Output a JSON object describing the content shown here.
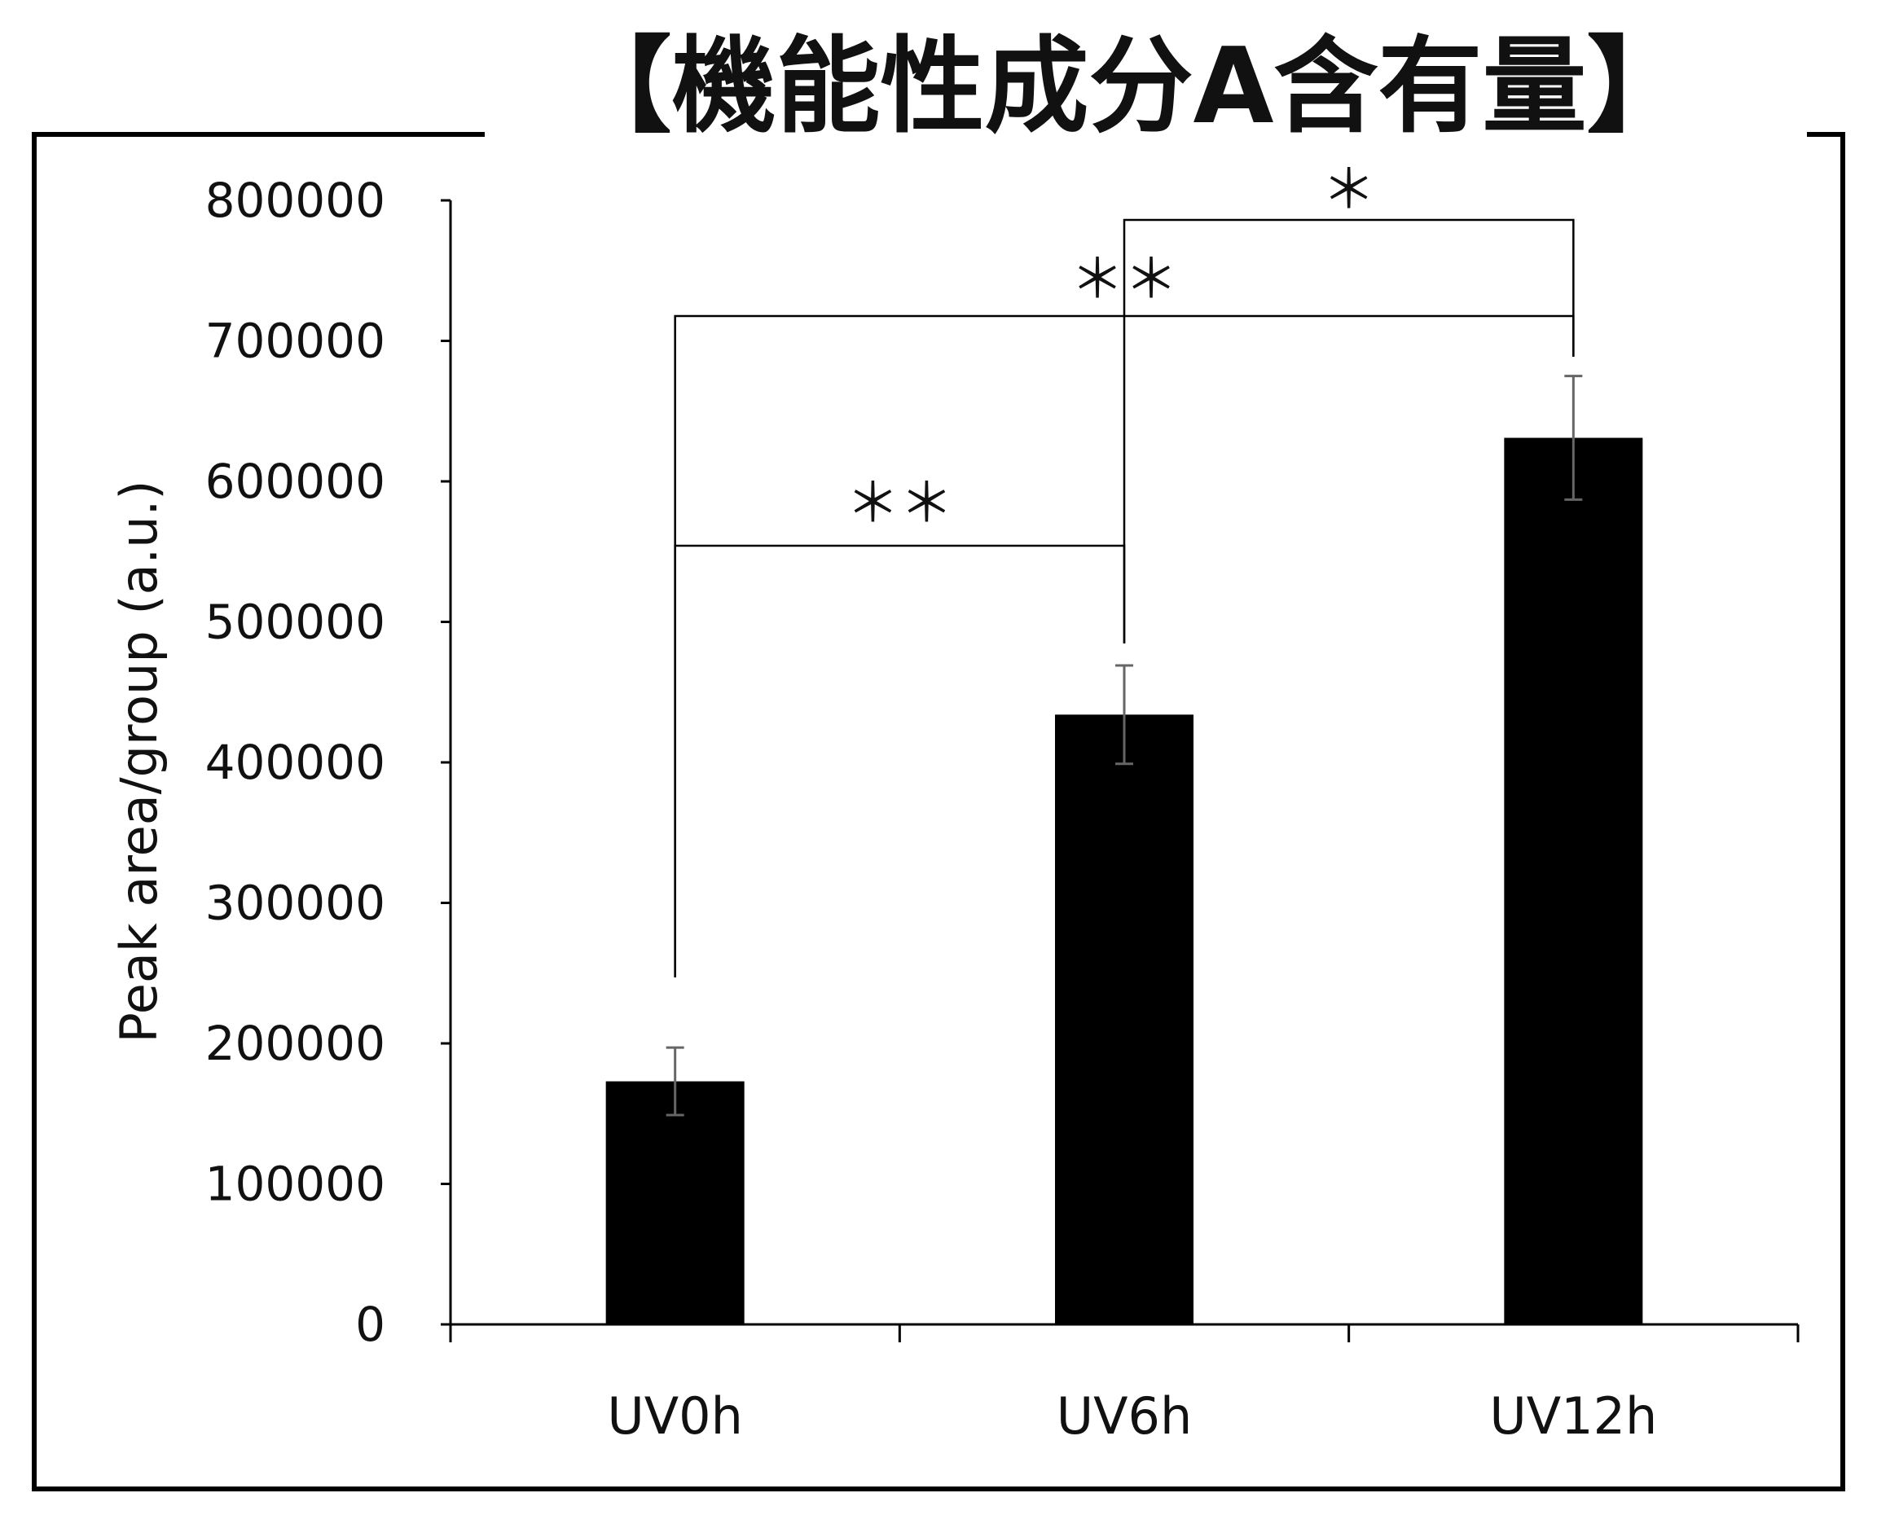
{
  "chart_data": {
    "type": "bar",
    "title": "【機能性成分A含有量】",
    "ylabel": "Peak area/group (a.u.)",
    "xlabel": "",
    "categories": [
      "UV0h",
      "UV6h",
      "UV12h"
    ],
    "values": [
      173000,
      434000,
      631000
    ],
    "error": [
      24000,
      35000,
      44000
    ],
    "ylim": [
      0,
      800000
    ],
    "yticks": [
      "0",
      "100000",
      "200000",
      "300000",
      "400000",
      "500000",
      "600000",
      "700000",
      "800000"
    ],
    "ytick_values": [
      0,
      100000,
      200000,
      300000,
      400000,
      500000,
      600000,
      700000,
      800000
    ],
    "grid": false,
    "bar_color": "#000000",
    "errorbar_color": "#666666",
    "significance": [
      {
        "from": "UV0h",
        "to": "UV6h",
        "label": "＊＊"
      },
      {
        "from": "UV0h",
        "to": "UV12h",
        "label": "＊＊"
      },
      {
        "from": "UV6h",
        "to": "UV12h",
        "label": "＊"
      }
    ]
  }
}
